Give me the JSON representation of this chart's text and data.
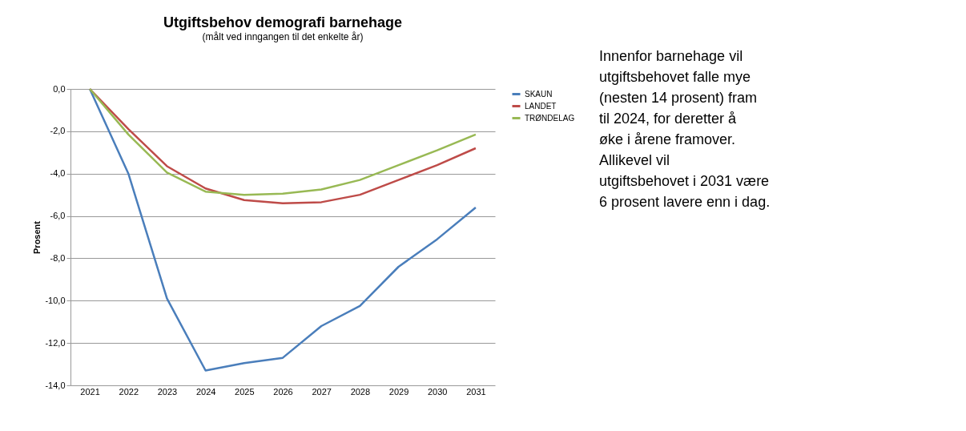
{
  "chart_data": {
    "type": "line",
    "title": "Utgiftsbehov demografi barnehage",
    "subtitle": "(målt ved inngangen til det enkelte år)",
    "ylabel": "Prosent",
    "categories": [
      "2021",
      "2022",
      "2023",
      "2024",
      "2025",
      "2026",
      "2027",
      "2028",
      "2029",
      "2030",
      "2031"
    ],
    "series": [
      {
        "name": "SKAUN",
        "color": "#4a7ebb",
        "values": [
          0,
          -4.0,
          -9.9,
          -13.3,
          -12.95,
          -12.7,
          -11.2,
          -10.25,
          -8.4,
          -7.1,
          -5.6
        ]
      },
      {
        "name": "LANDET",
        "color": "#be4b48",
        "values": [
          0,
          -1.9,
          -3.65,
          -4.7,
          -5.25,
          -5.4,
          -5.35,
          -5.0,
          -4.3,
          -3.6,
          -2.8
        ]
      },
      {
        "name": "TRØNDELAG",
        "color": "#98b954",
        "values": [
          0,
          -2.15,
          -3.95,
          -4.85,
          -5.0,
          -4.95,
          -4.75,
          -4.3,
          -3.6,
          -2.9,
          -2.15
        ]
      }
    ],
    "ylim": [
      -14,
      0
    ],
    "yticks": [
      {
        "value": -14,
        "label": "-14,0"
      },
      {
        "value": -12,
        "label": "-12,0"
      },
      {
        "value": -10,
        "label": "-10,0"
      },
      {
        "value": -8,
        "label": "-8,0"
      },
      {
        "value": -6,
        "label": "-6,0"
      },
      {
        "value": -4,
        "label": "-4,0"
      },
      {
        "value": -2,
        "label": "-2,0"
      },
      {
        "value": 0,
        "label": "0,0"
      }
    ],
    "grid": "y",
    "legend": "right",
    "marker": "none",
    "line_style": "solid",
    "annotations": [
      "Innenfor barnehage vil utgiftsbehovet falle mye (nesten 14 prosent) fram til 2024, for deretter å øke i årene framover. Allikevel vil utgiftsbehovet i 2031 være 6 prosent lavere enn i dag."
    ]
  }
}
